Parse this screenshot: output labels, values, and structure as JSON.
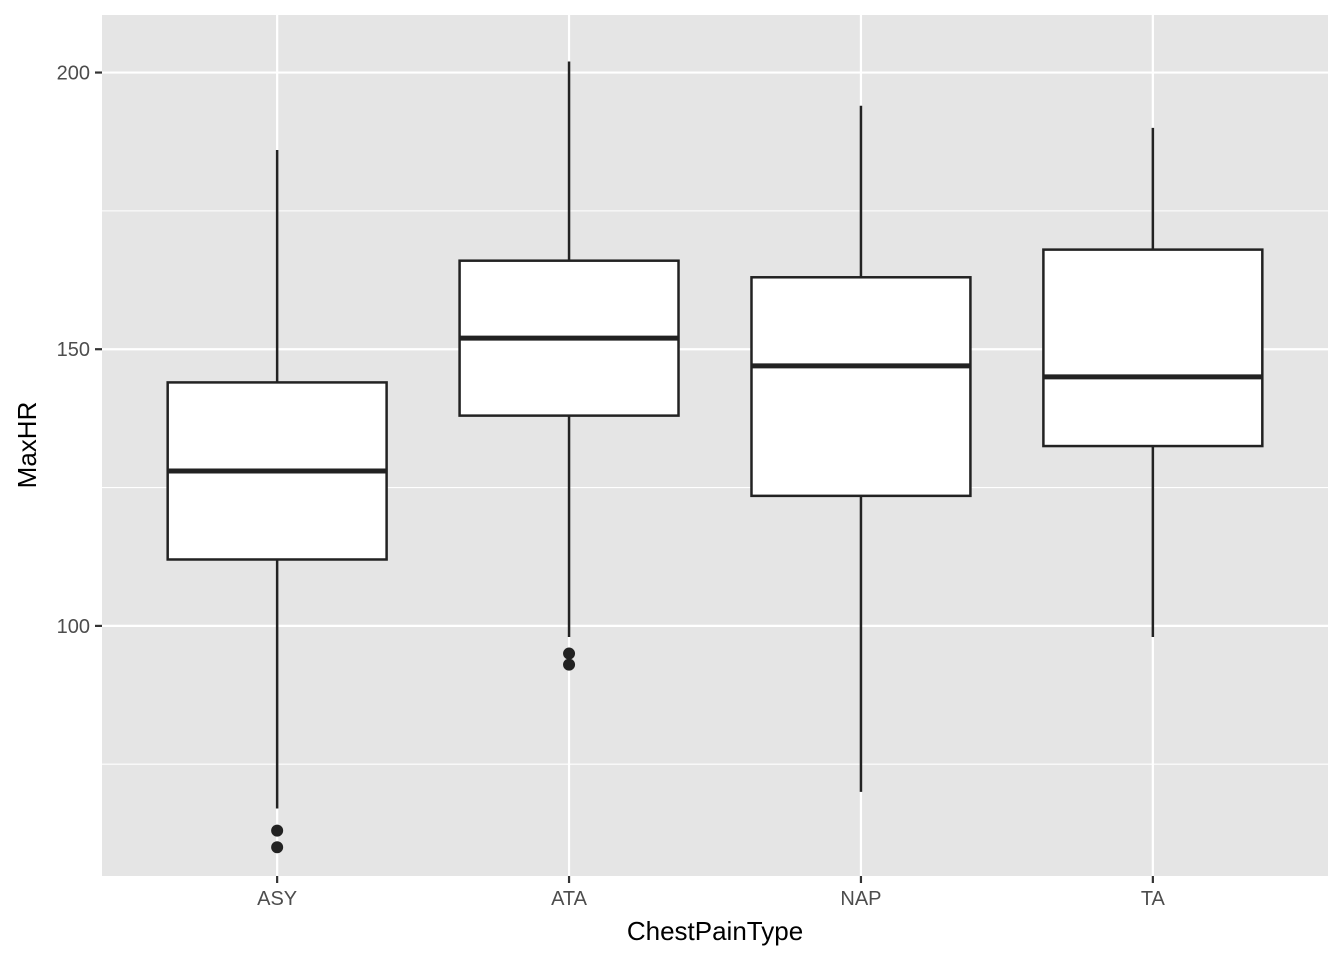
{
  "chart_data": {
    "type": "box",
    "title": "",
    "xlabel": "ChestPainType",
    "ylabel": "MaxHR",
    "ylim": [
      54.8,
      210.4
    ],
    "y_ticks": [
      100,
      150,
      200
    ],
    "y_minor_ticks": [
      75,
      125,
      175
    ],
    "grid": true,
    "colors": {
      "panel_background": "#e5e5e5",
      "grid": "#ffffff",
      "box_fill": "#ffffff",
      "box_stroke": "#222222",
      "outlier": "#222222"
    },
    "categories": [
      "ASY",
      "ATA",
      "NAP",
      "TA"
    ],
    "boxes": [
      {
        "category": "ASY",
        "whisker_low": 67,
        "q1": 112,
        "median": 128,
        "q3": 144,
        "whisker_high": 186,
        "outliers": [
          63,
          60
        ]
      },
      {
        "category": "ATA",
        "whisker_low": 98,
        "q1": 138,
        "median": 152,
        "q3": 166,
        "whisker_high": 202,
        "outliers": [
          95,
          93
        ]
      },
      {
        "category": "NAP",
        "whisker_low": 70,
        "q1": 123.5,
        "median": 147,
        "q3": 163,
        "whisker_high": 194,
        "outliers": []
      },
      {
        "category": "TA",
        "whisker_low": 98,
        "q1": 132.5,
        "median": 145,
        "q3": 168,
        "whisker_high": 190,
        "outliers": []
      }
    ]
  }
}
